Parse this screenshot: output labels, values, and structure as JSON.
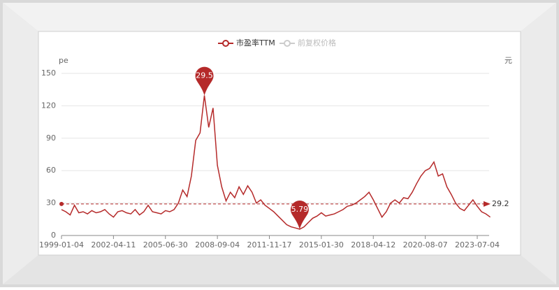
{
  "chart_data": {
    "type": "line",
    "y_label": "pe",
    "y2_label": "元",
    "categories": [
      "1999-01-04",
      null,
      null,
      null,
      null,
      null,
      null,
      null,
      null,
      null,
      null,
      null,
      "2002-04-11",
      null,
      null,
      null,
      null,
      null,
      null,
      null,
      null,
      null,
      null,
      null,
      "2005-06-30",
      null,
      null,
      null,
      null,
      null,
      null,
      null,
      null,
      null,
      null,
      null,
      "2008-09-04",
      null,
      null,
      null,
      null,
      null,
      null,
      null,
      null,
      null,
      null,
      null,
      "2011-11-17",
      null,
      null,
      null,
      null,
      null,
      null,
      null,
      null,
      null,
      null,
      null,
      "2015-01-30",
      null,
      null,
      null,
      null,
      null,
      null,
      null,
      null,
      null,
      null,
      null,
      "2018-04-12",
      null,
      null,
      null,
      null,
      null,
      null,
      null,
      null,
      null,
      null,
      null,
      "2020-08-07",
      null,
      null,
      null,
      null,
      null,
      null,
      null,
      null,
      null,
      null,
      null,
      "2023-07-04",
      null,
      null,
      null
    ],
    "series": [
      {
        "name": "市盈率TTM",
        "color": "#b52a2a",
        "selected": true,
        "values": [
          24,
          22,
          19,
          28,
          21,
          22,
          20,
          23,
          21,
          22,
          24,
          20,
          17,
          22,
          23,
          21,
          20,
          24,
          19,
          22,
          28,
          22,
          21,
          20,
          23,
          22,
          24,
          30,
          42,
          36,
          55,
          88,
          95,
          129.56,
          100,
          118,
          65,
          45,
          32,
          40,
          35,
          45,
          38,
          46,
          40,
          30,
          33,
          28,
          25,
          22,
          18,
          14,
          10,
          8,
          7,
          5.79,
          8,
          12,
          16,
          18,
          21,
          18,
          19,
          20,
          22,
          24,
          27,
          28,
          30,
          33,
          36,
          40,
          33,
          25,
          17,
          22,
          30,
          33,
          30,
          35,
          34,
          40,
          48,
          55,
          60,
          62,
          68,
          55,
          57,
          45,
          38,
          30,
          25,
          23,
          28,
          33,
          27,
          22,
          20,
          17
        ]
      },
      {
        "name": "前复权价格",
        "color": "#cccccc",
        "selected": false
      }
    ],
    "mark_points": [
      33,
      55
    ],
    "mark_line": 29.2,
    "ylim": [
      0,
      150
    ],
    "yticks": [
      0,
      30,
      60,
      90,
      120,
      150
    ],
    "grid": true
  }
}
